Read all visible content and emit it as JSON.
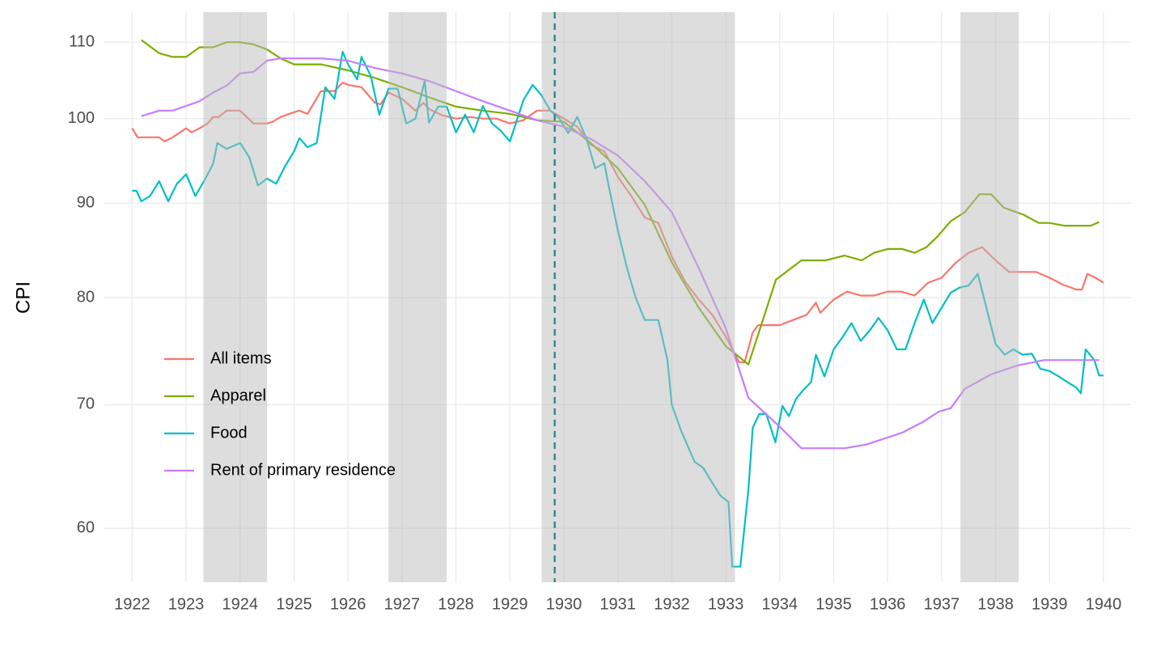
{
  "chart_data": {
    "type": "line",
    "y_label": "CPI",
    "log_y": true,
    "grid": true,
    "legend": "left",
    "xlim": [
      1921.47,
      1940.51
    ],
    "ylim": [
      56.1,
      114.2
    ],
    "xticks": [
      1922,
      1923,
      1924,
      1925,
      1926,
      1927,
      1928,
      1929,
      1930,
      1931,
      1932,
      1933,
      1934,
      1935,
      1936,
      1937,
      1938,
      1939,
      1940
    ],
    "yticks": [
      60,
      70,
      80,
      90,
      100,
      110
    ],
    "shaded_periods": [
      [
        1923.32,
        1924.5
      ],
      [
        1926.75,
        1927.83
      ],
      [
        1929.59,
        1933.17
      ],
      [
        1937.35,
        1938.43
      ]
    ],
    "shade_color": "#bbbbbb",
    "vline": 1929.83,
    "vline_color": "#2a8a8a",
    "series": [
      {
        "name": "All items",
        "color": "#F8766D",
        "x": [
          1922.0,
          1922.1,
          1922.25,
          1922.5,
          1922.6,
          1922.75,
          1923.0,
          1923.1,
          1923.25,
          1923.4,
          1923.5,
          1923.6,
          1923.75,
          1924.0,
          1924.25,
          1924.5,
          1924.6,
          1924.75,
          1925.0,
          1925.1,
          1925.25,
          1925.5,
          1925.75,
          1925.9,
          1926.0,
          1926.25,
          1926.5,
          1926.6,
          1926.75,
          1927.0,
          1927.25,
          1927.4,
          1927.5,
          1927.75,
          1928.0,
          1928.25,
          1928.5,
          1928.75,
          1929.0,
          1929.25,
          1929.5,
          1929.75,
          1930.0,
          1930.25,
          1930.5,
          1930.75,
          1931.0,
          1931.25,
          1931.5,
          1931.75,
          1932.0,
          1932.25,
          1932.5,
          1932.75,
          1933.0,
          1933.25,
          1933.35,
          1933.5,
          1933.6,
          1934.0,
          1934.25,
          1934.5,
          1934.67,
          1934.75,
          1935.0,
          1935.25,
          1935.5,
          1935.75,
          1936.0,
          1936.25,
          1936.5,
          1936.75,
          1937.0,
          1937.25,
          1937.5,
          1937.75,
          1938.0,
          1938.25,
          1938.5,
          1938.75,
          1939.0,
          1939.25,
          1939.5,
          1939.6,
          1939.7,
          1939.85,
          1940.0
        ],
        "values": [
          98.8,
          97.7,
          97.7,
          97.7,
          97.2,
          97.7,
          98.8,
          98.3,
          98.8,
          99.4,
          100.2,
          100.2,
          101.0,
          101.0,
          99.4,
          99.4,
          99.6,
          100.2,
          100.8,
          101.0,
          100.6,
          103.5,
          103.5,
          104.6,
          104.3,
          104.0,
          102.0,
          101.8,
          103.3,
          102.5,
          101.0,
          102.0,
          101.2,
          100.4,
          100.0,
          100.2,
          100.0,
          100.0,
          99.4,
          99.8,
          101.0,
          101.0,
          100.0,
          99.0,
          96.8,
          96.0,
          93.0,
          90.8,
          88.4,
          87.8,
          84.2,
          81.6,
          79.8,
          78.3,
          76.2,
          73.8,
          73.8,
          76.6,
          77.3,
          77.3,
          77.8,
          78.3,
          79.5,
          78.5,
          79.8,
          80.6,
          80.2,
          80.2,
          80.6,
          80.6,
          80.2,
          81.5,
          82.0,
          83.5,
          84.6,
          85.2,
          83.8,
          82.6,
          82.6,
          82.6,
          82.0,
          81.3,
          80.8,
          80.8,
          82.4,
          82.0,
          81.5
        ]
      },
      {
        "name": "Apparel",
        "color": "#7CAE00",
        "x": [
          1922.17,
          1922.5,
          1922.75,
          1923.0,
          1923.25,
          1923.5,
          1923.75,
          1924.0,
          1924.25,
          1924.5,
          1924.75,
          1925.0,
          1925.5,
          1926.0,
          1926.5,
          1927.0,
          1927.5,
          1928.0,
          1928.5,
          1929.0,
          1929.5,
          1930.0,
          1930.5,
          1931.0,
          1931.5,
          1932.0,
          1932.5,
          1933.0,
          1933.42,
          1933.93,
          1934.4,
          1934.85,
          1935.2,
          1935.52,
          1935.75,
          1936.0,
          1936.27,
          1936.5,
          1936.72,
          1936.92,
          1937.17,
          1937.43,
          1937.7,
          1937.92,
          1938.15,
          1938.52,
          1938.8,
          1939.0,
          1939.27,
          1939.5,
          1939.76,
          1939.92
        ],
        "values": [
          110.3,
          108.5,
          108.0,
          108.0,
          109.3,
          109.3,
          110.0,
          110.0,
          109.7,
          109.0,
          107.8,
          107.0,
          107.0,
          106.2,
          105.2,
          104.0,
          102.7,
          101.5,
          101.0,
          100.6,
          99.8,
          99.6,
          97.0,
          94.0,
          89.8,
          83.6,
          79.0,
          75.3,
          73.6,
          81.8,
          83.8,
          83.8,
          84.3,
          83.8,
          84.6,
          85.0,
          85.0,
          84.6,
          85.2,
          86.3,
          88.0,
          89.0,
          91.0,
          91.0,
          89.5,
          88.7,
          87.8,
          87.8,
          87.5,
          87.5,
          87.5,
          87.9
        ]
      },
      {
        "name": "Food",
        "color": "#00BFC4",
        "x": [
          1922.0,
          1922.08,
          1922.17,
          1922.33,
          1922.5,
          1922.67,
          1922.83,
          1923.0,
          1923.17,
          1923.33,
          1923.5,
          1923.58,
          1923.75,
          1924.0,
          1924.17,
          1924.33,
          1924.5,
          1924.67,
          1924.83,
          1925.0,
          1925.1,
          1925.25,
          1925.42,
          1925.58,
          1925.75,
          1925.9,
          1926.0,
          1926.17,
          1926.25,
          1926.42,
          1926.58,
          1926.75,
          1926.92,
          1927.08,
          1927.25,
          1927.42,
          1927.5,
          1927.67,
          1927.83,
          1928.0,
          1928.17,
          1928.33,
          1928.5,
          1928.67,
          1928.83,
          1929.0,
          1929.25,
          1929.42,
          1929.58,
          1929.75,
          1929.92,
          1930.08,
          1930.25,
          1930.42,
          1930.58,
          1930.75,
          1930.83,
          1931.0,
          1931.17,
          1931.33,
          1931.5,
          1931.75,
          1931.92,
          1932.0,
          1932.17,
          1932.42,
          1932.58,
          1932.75,
          1932.9,
          1933.05,
          1933.12,
          1933.27,
          1933.42,
          1933.5,
          1933.62,
          1933.75,
          1933.92,
          1934.05,
          1934.17,
          1934.3,
          1934.42,
          1934.58,
          1934.67,
          1934.83,
          1935.0,
          1935.17,
          1935.33,
          1935.5,
          1935.67,
          1935.83,
          1936.0,
          1936.17,
          1936.33,
          1936.5,
          1936.67,
          1936.83,
          1937.0,
          1937.17,
          1937.33,
          1937.5,
          1937.67,
          1937.83,
          1938.0,
          1938.17,
          1938.33,
          1938.5,
          1938.67,
          1938.83,
          1939.0,
          1939.17,
          1939.33,
          1939.5,
          1939.58,
          1939.67,
          1939.83,
          1939.92,
          1940.0
        ],
        "values": [
          91.4,
          91.4,
          90.2,
          90.8,
          92.5,
          90.2,
          92.2,
          93.3,
          90.8,
          92.5,
          94.5,
          97.0,
          96.3,
          97.0,
          95.3,
          92.0,
          92.8,
          92.2,
          94.2,
          96.0,
          97.6,
          96.5,
          97.0,
          104.0,
          102.5,
          108.7,
          107.0,
          105.0,
          108.0,
          105.5,
          100.5,
          103.8,
          103.8,
          99.4,
          100.0,
          104.8,
          99.5,
          101.5,
          101.5,
          98.3,
          100.5,
          98.3,
          101.6,
          99.4,
          98.5,
          97.2,
          102.3,
          104.3,
          103.0,
          101.0,
          100.0,
          98.2,
          100.2,
          97.5,
          94.0,
          94.6,
          92.0,
          87.0,
          83.0,
          80.0,
          77.8,
          77.8,
          74.0,
          70.0,
          67.8,
          65.2,
          64.7,
          63.5,
          62.5,
          62.0,
          57.2,
          57.2,
          63.0,
          68.0,
          69.2,
          69.2,
          66.8,
          69.9,
          69.0,
          70.5,
          71.2,
          72.0,
          74.5,
          72.5,
          75.0,
          76.2,
          77.5,
          75.8,
          76.8,
          78.0,
          76.8,
          75.0,
          75.0,
          77.5,
          79.8,
          77.5,
          79.0,
          80.5,
          81.0,
          81.2,
          82.4,
          79.0,
          75.5,
          74.5,
          75.0,
          74.5,
          74.6,
          73.2,
          73.0,
          72.5,
          72.0,
          71.5,
          71.0,
          75.0,
          74.0,
          72.6,
          72.6
        ]
      },
      {
        "name": "Rent of primary residence",
        "color": "#C77CFF",
        "x": [
          1922.17,
          1922.5,
          1922.75,
          1923.0,
          1923.25,
          1923.5,
          1923.75,
          1924.0,
          1924.25,
          1924.5,
          1924.75,
          1925.0,
          1925.5,
          1926.0,
          1926.5,
          1927.0,
          1927.5,
          1928.0,
          1928.5,
          1929.0,
          1929.5,
          1930.0,
          1930.5,
          1931.0,
          1931.5,
          1932.0,
          1932.5,
          1933.0,
          1933.42,
          1934.0,
          1934.4,
          1935.2,
          1935.6,
          1936.27,
          1936.65,
          1936.95,
          1937.17,
          1937.43,
          1937.92,
          1938.4,
          1938.9,
          1939.92
        ],
        "values": [
          100.3,
          101.0,
          101.0,
          101.6,
          102.2,
          103.3,
          104.2,
          105.8,
          106.0,
          107.5,
          107.8,
          107.8,
          107.8,
          107.5,
          106.5,
          105.8,
          104.8,
          103.5,
          102.2,
          101.0,
          99.8,
          99.0,
          97.5,
          95.5,
          92.5,
          89.0,
          83.0,
          77.0,
          70.6,
          68.1,
          66.3,
          66.3,
          66.6,
          67.6,
          68.5,
          69.4,
          69.7,
          71.4,
          72.7,
          73.5,
          74.0,
          74.0
        ]
      }
    ]
  }
}
